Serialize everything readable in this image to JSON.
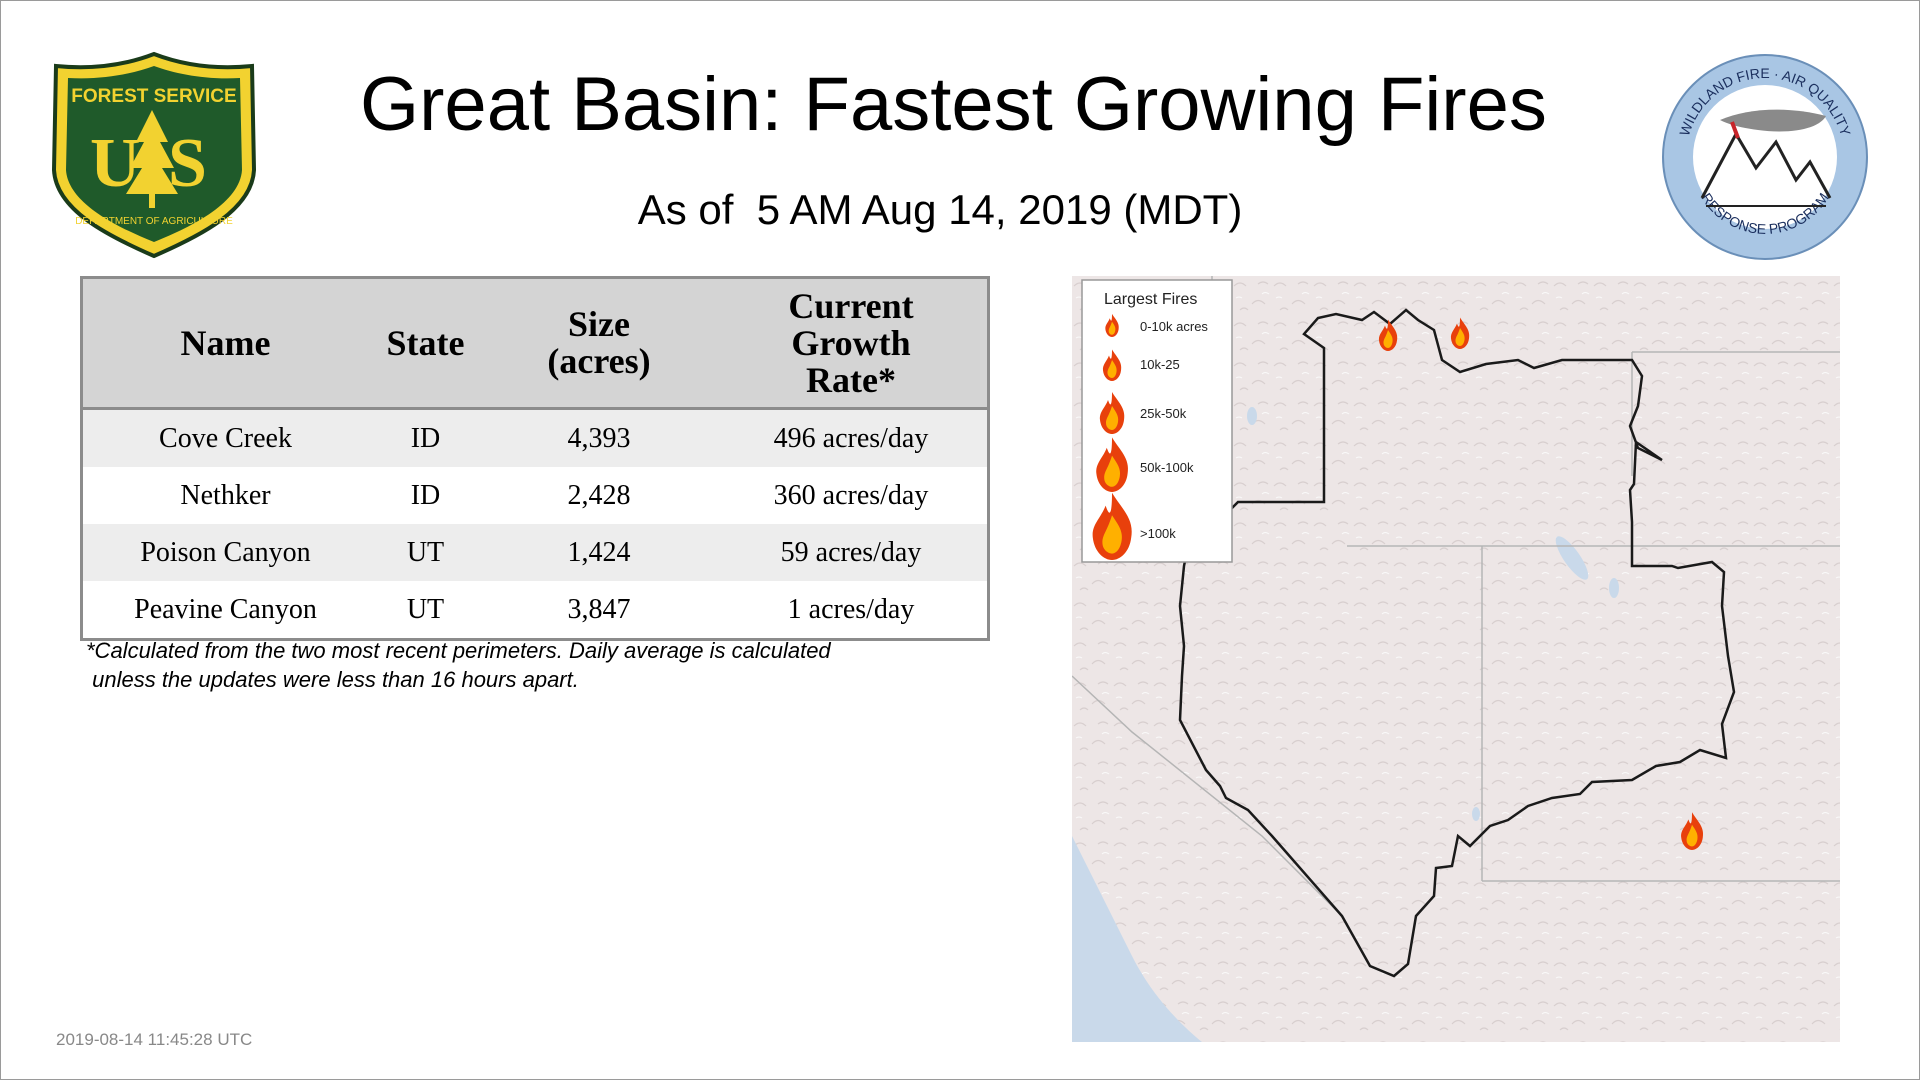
{
  "title": "Great Basin: Fastest Growing Fires",
  "subtitle": "As of  5 AM Aug 14, 2019 (MDT)",
  "logos": {
    "forest_service": {
      "top_text": "FOREST SERVICE",
      "letters": "US",
      "bottom_text": "DEPARTMENT OF AGRICULTURE"
    },
    "wildland_fire": {
      "top_text": "WILDLAND FIRE · AIR QUALITY",
      "bottom_text": "RESPONSE PROGRAM"
    }
  },
  "table": {
    "headers": {
      "name": "Name",
      "state": "State",
      "size": "Size (acres)",
      "rate": "Current Growth Rate*"
    },
    "rows": [
      {
        "name": "Cove Creek",
        "state": "ID",
        "size": "4,393",
        "rate": "496 acres/day"
      },
      {
        "name": "Nethker",
        "state": "ID",
        "size": "2,428",
        "rate": "360 acres/day"
      },
      {
        "name": "Poison Canyon",
        "state": "UT",
        "size": "1,424",
        "rate": "59 acres/day"
      },
      {
        "name": "Peavine Canyon",
        "state": "UT",
        "size": "3,847",
        "rate": "1 acres/day"
      }
    ]
  },
  "footnote": "*Calculated from the two most recent perimeters. Daily average is calculated\n unless the updates were less than 16 hours apart.",
  "timestamp": "2019-08-14 11:45:28 UTC",
  "map": {
    "legend": {
      "title": "Largest Fires",
      "items": [
        "0-10k acres",
        "10k-25",
        "25k-50k",
        "50k-100k",
        ">100k"
      ]
    },
    "colors": {
      "flame_outer": "#e8400c",
      "flame_inner": "#ffb000",
      "terrain": "#ede6e6",
      "water": "#c9d9ea",
      "boundary": "#222222"
    }
  }
}
